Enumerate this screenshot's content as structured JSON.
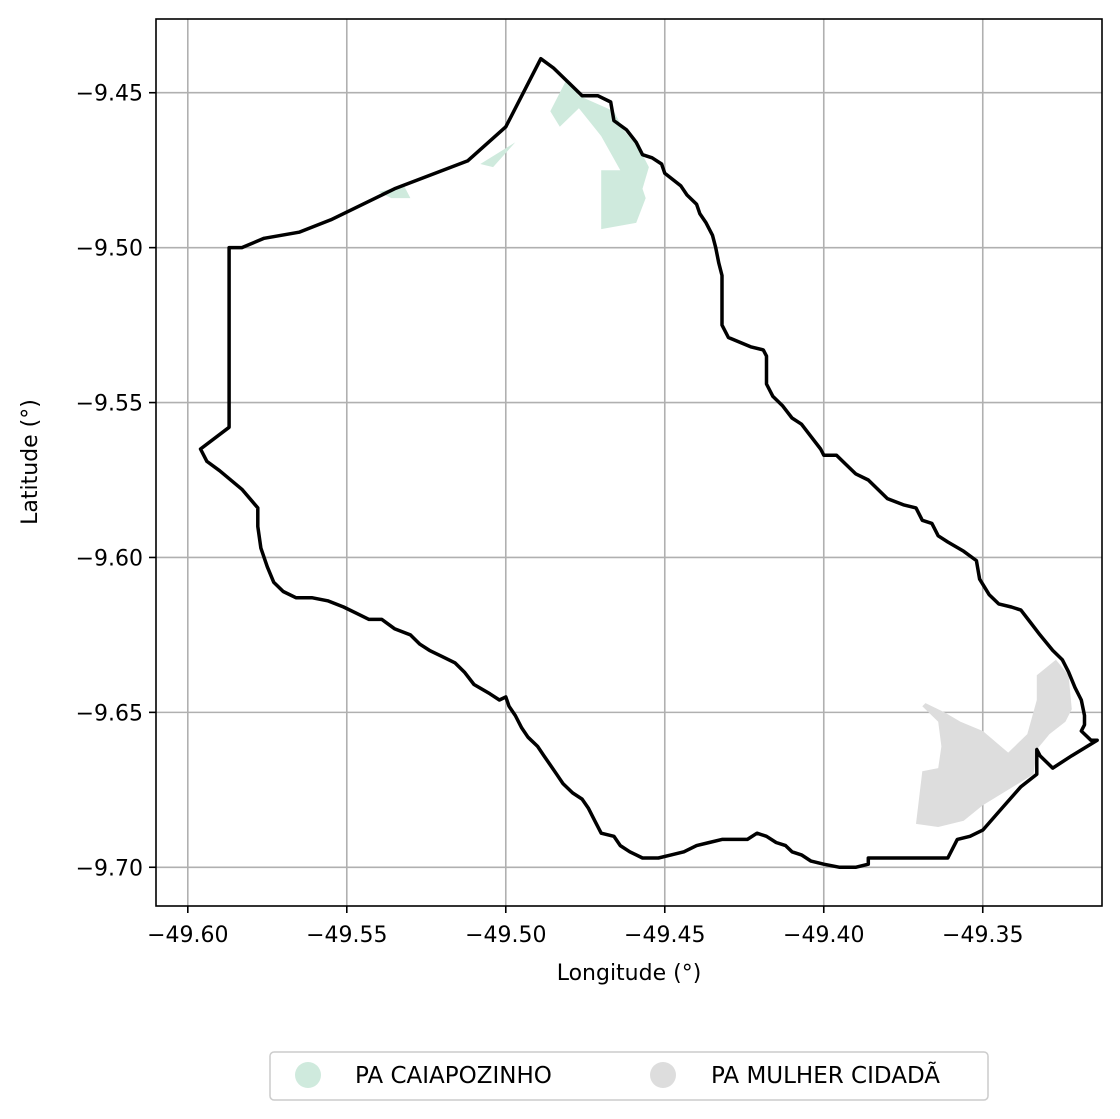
{
  "map": {
    "xlabel": "Longitude (°)",
    "ylabel": "Latitude (°)",
    "xlim": [
      -49.61,
      -49.3125
    ],
    "ylim": [
      -9.7125,
      -9.4262
    ],
    "grid": true,
    "x_ticks": [
      {
        "value": -49.6,
        "label": "−49.60"
      },
      {
        "value": -49.55,
        "label": "−49.55"
      },
      {
        "value": -49.5,
        "label": "−49.50"
      },
      {
        "value": -49.45,
        "label": "−49.45"
      },
      {
        "value": -49.4,
        "label": "−49.40"
      },
      {
        "value": -49.35,
        "label": "−49.35"
      }
    ],
    "y_ticks": [
      {
        "value": -9.45,
        "label": "−9.45"
      },
      {
        "value": -9.5,
        "label": "−9.50"
      },
      {
        "value": -9.55,
        "label": "−9.55"
      },
      {
        "value": -9.6,
        "label": "−9.60"
      },
      {
        "value": -9.65,
        "label": "−9.65"
      },
      {
        "value": -9.7,
        "label": "−9.70"
      }
    ],
    "legend": {
      "placement": "below-center",
      "entries": [
        {
          "label": "PA CAIAPOZINHO",
          "color": "#cfeadd"
        },
        {
          "label": "PA MULHER CIDADÃ",
          "color": "#dddddd"
        }
      ]
    },
    "boundary_color": "#000000",
    "settlements": [
      {
        "name": "PA CAIAPOZINHO",
        "color": "#cfeadd",
        "parts": [
          [
            [
              -49.486,
              -9.456
            ],
            [
              -49.481,
              -9.446
            ],
            [
              -49.477,
              -9.451
            ],
            [
              -49.466,
              -9.456
            ],
            [
              -49.463,
              -9.462
            ],
            [
              -49.458,
              -9.468
            ],
            [
              -49.455,
              -9.474
            ],
            [
              -49.457,
              -9.481
            ],
            [
              -49.456,
              -9.484
            ],
            [
              -49.459,
              -9.492
            ],
            [
              -49.47,
              -9.494
            ],
            [
              -49.47,
              -9.475
            ],
            [
              -49.464,
              -9.475
            ],
            [
              -49.47,
              -9.464
            ],
            [
              -49.477,
              -9.455
            ],
            [
              -49.483,
              -9.461
            ]
          ],
          [
            [
              -49.497,
              -9.466
            ],
            [
              -49.504,
              -9.474
            ],
            [
              -49.508,
              -9.473
            ]
          ],
          [
            [
              -49.536,
              -9.484
            ],
            [
              -49.53,
              -9.484
            ],
            [
              -49.532,
              -9.48
            ],
            [
              -49.54,
              -9.482
            ]
          ]
        ]
      },
      {
        "name": "PA MULHER CIDADÃ",
        "color": "#dddddd",
        "parts": [
          [
            [
              -49.368,
              -9.647
            ],
            [
              -49.362,
              -9.65
            ],
            [
              -49.357,
              -9.653
            ],
            [
              -49.35,
              -9.656
            ],
            [
              -49.342,
              -9.663
            ],
            [
              -49.336,
              -9.657
            ],
            [
              -49.333,
              -9.646
            ],
            [
              -49.333,
              -9.638
            ],
            [
              -49.327,
              -9.633
            ],
            [
              -49.323,
              -9.638
            ],
            [
              -49.322,
              -9.649
            ],
            [
              -49.324,
              -9.653
            ],
            [
              -49.329,
              -9.657
            ],
            [
              -49.333,
              -9.662
            ],
            [
              -49.334,
              -9.67
            ],
            [
              -49.35,
              -9.68
            ],
            [
              -49.356,
              -9.685
            ],
            [
              -49.364,
              -9.687
            ],
            [
              -49.371,
              -9.686
            ],
            [
              -49.369,
              -9.669
            ],
            [
              -49.364,
              -9.668
            ],
            [
              -49.363,
              -9.661
            ],
            [
              -49.364,
              -9.653
            ],
            [
              -49.369,
              -9.648
            ]
          ]
        ]
      }
    ],
    "boundary": [
      [
        -49.489,
        -9.439
      ],
      [
        -49.485,
        -9.442
      ],
      [
        -49.48,
        -9.447
      ],
      [
        -49.476,
        -9.451
      ],
      [
        -49.471,
        -9.451
      ],
      [
        -49.467,
        -9.453
      ],
      [
        -49.466,
        -9.459
      ],
      [
        -49.462,
        -9.462
      ],
      [
        -49.459,
        -9.466
      ],
      [
        -49.457,
        -9.47
      ],
      [
        -49.454,
        -9.471
      ],
      [
        -49.451,
        -9.473
      ],
      [
        -49.45,
        -9.476
      ],
      [
        -49.445,
        -9.48
      ],
      [
        -49.443,
        -9.483
      ],
      [
        -49.44,
        -9.486
      ],
      [
        -49.439,
        -9.489
      ],
      [
        -49.437,
        -9.492
      ],
      [
        -49.435,
        -9.496
      ],
      [
        -49.434,
        -9.5
      ],
      [
        -49.433,
        -9.505
      ],
      [
        -49.432,
        -9.509
      ],
      [
        -49.432,
        -9.525
      ],
      [
        -49.43,
        -9.529
      ],
      [
        -49.423,
        -9.532
      ],
      [
        -49.419,
        -9.533
      ],
      [
        -49.418,
        -9.535
      ],
      [
        -49.418,
        -9.544
      ],
      [
        -49.416,
        -9.548
      ],
      [
        -49.413,
        -9.551
      ],
      [
        -49.41,
        -9.555
      ],
      [
        -49.407,
        -9.557
      ],
      [
        -49.404,
        -9.561
      ],
      [
        -49.401,
        -9.565
      ],
      [
        -49.4,
        -9.567
      ],
      [
        -49.396,
        -9.567
      ],
      [
        -49.393,
        -9.57
      ],
      [
        -49.39,
        -9.573
      ],
      [
        -49.386,
        -9.575
      ],
      [
        -49.383,
        -9.578
      ],
      [
        -49.38,
        -9.581
      ],
      [
        -49.375,
        -9.583
      ],
      [
        -49.371,
        -9.584
      ],
      [
        -49.369,
        -9.588
      ],
      [
        -49.366,
        -9.589
      ],
      [
        -49.364,
        -9.593
      ],
      [
        -49.361,
        -9.595
      ],
      [
        -49.356,
        -9.598
      ],
      [
        -49.352,
        -9.601
      ],
      [
        -49.351,
        -9.607
      ],
      [
        -49.348,
        -9.612
      ],
      [
        -49.345,
        -9.615
      ],
      [
        -49.341,
        -9.616
      ],
      [
        -49.338,
        -9.617
      ],
      [
        -49.335,
        -9.621
      ],
      [
        -49.332,
        -9.625
      ],
      [
        -49.328,
        -9.63
      ],
      [
        -49.325,
        -9.633
      ],
      [
        -49.323,
        -9.637
      ],
      [
        -49.321,
        -9.642
      ],
      [
        -49.319,
        -9.646
      ],
      [
        -49.318,
        -9.651
      ],
      [
        -49.318,
        -9.654
      ],
      [
        -49.319,
        -9.656
      ],
      [
        -49.316,
        -9.659
      ],
      [
        -49.314,
        -9.659
      ],
      [
        -49.322,
        -9.664
      ],
      [
        -49.328,
        -9.668
      ],
      [
        -49.332,
        -9.664
      ],
      [
        -49.333,
        -9.662
      ],
      [
        -49.333,
        -9.67
      ],
      [
        -49.338,
        -9.674
      ],
      [
        -49.344,
        -9.681
      ],
      [
        -49.35,
        -9.688
      ],
      [
        -49.354,
        -9.69
      ],
      [
        -49.358,
        -9.691
      ],
      [
        -49.361,
        -9.697
      ],
      [
        -49.373,
        -9.697
      ],
      [
        -49.384,
        -9.697
      ],
      [
        -49.386,
        -9.697
      ],
      [
        -49.386,
        -9.699
      ],
      [
        -49.39,
        -9.7
      ],
      [
        -49.395,
        -9.7
      ],
      [
        -49.4,
        -9.699
      ],
      [
        -49.404,
        -9.698
      ],
      [
        -49.407,
        -9.696
      ],
      [
        -49.41,
        -9.695
      ],
      [
        -49.412,
        -9.693
      ],
      [
        -49.415,
        -9.692
      ],
      [
        -49.418,
        -9.69
      ],
      [
        -49.421,
        -9.689
      ],
      [
        -49.424,
        -9.691
      ],
      [
        -49.428,
        -9.691
      ],
      [
        -49.432,
        -9.691
      ],
      [
        -49.436,
        -9.692
      ],
      [
        -49.44,
        -9.693
      ],
      [
        -49.444,
        -9.695
      ],
      [
        -49.448,
        -9.696
      ],
      [
        -49.452,
        -9.697
      ],
      [
        -49.457,
        -9.697
      ],
      [
        -49.461,
        -9.695
      ],
      [
        -49.464,
        -9.693
      ],
      [
        -49.466,
        -9.69
      ],
      [
        -49.47,
        -9.689
      ],
      [
        -49.472,
        -9.685
      ],
      [
        -49.474,
        -9.681
      ],
      [
        -49.476,
        -9.678
      ],
      [
        -49.479,
        -9.676
      ],
      [
        -49.482,
        -9.673
      ],
      [
        -49.484,
        -9.67
      ],
      [
        -49.486,
        -9.667
      ],
      [
        -49.488,
        -9.664
      ],
      [
        -49.49,
        -9.661
      ],
      [
        -49.493,
        -9.658
      ],
      [
        -49.495,
        -9.655
      ],
      [
        -49.497,
        -9.651
      ],
      [
        -49.499,
        -9.648
      ],
      [
        -49.5,
        -9.645
      ],
      [
        -49.502,
        -9.646
      ],
      [
        -49.505,
        -9.644
      ],
      [
        -49.51,
        -9.641
      ],
      [
        -49.513,
        -9.637
      ],
      [
        -49.516,
        -9.634
      ],
      [
        -49.52,
        -9.632
      ],
      [
        -49.524,
        -9.63
      ],
      [
        -49.527,
        -9.628
      ],
      [
        -49.53,
        -9.625
      ],
      [
        -49.535,
        -9.623
      ],
      [
        -49.539,
        -9.62
      ],
      [
        -49.543,
        -9.62
      ],
      [
        -49.547,
        -9.618
      ],
      [
        -49.551,
        -9.616
      ],
      [
        -49.556,
        -9.614
      ],
      [
        -49.561,
        -9.613
      ],
      [
        -49.566,
        -9.613
      ],
      [
        -49.57,
        -9.611
      ],
      [
        -49.573,
        -9.608
      ],
      [
        -49.575,
        -9.603
      ],
      [
        -49.577,
        -9.597
      ],
      [
        -49.578,
        -9.59
      ],
      [
        -49.578,
        -9.584
      ],
      [
        -49.583,
        -9.578
      ],
      [
        -49.59,
        -9.572
      ],
      [
        -49.594,
        -9.569
      ],
      [
        -49.596,
        -9.565
      ],
      [
        -49.587,
        -9.558
      ],
      [
        -49.587,
        -9.5
      ],
      [
        -49.583,
        -9.5
      ],
      [
        -49.576,
        -9.497
      ],
      [
        -49.565,
        -9.495
      ],
      [
        -49.555,
        -9.491
      ],
      [
        -49.535,
        -9.481
      ],
      [
        -49.512,
        -9.472
      ],
      [
        -49.5,
        -9.461
      ],
      [
        -49.489,
        -9.439
      ]
    ]
  }
}
